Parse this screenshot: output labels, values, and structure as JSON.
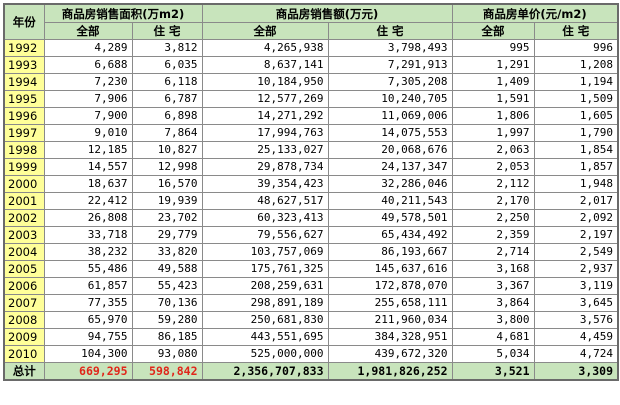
{
  "headers": {
    "year": "年份",
    "groups": [
      "商品房销售面积(万m2)",
      "商品房销售额(万元)",
      "商品房单价(元/m2)"
    ],
    "sub": [
      "全部",
      "住  宅",
      "全部",
      "住    宅",
      "全部",
      "住  宅"
    ]
  },
  "rows": [
    {
      "year": "1992",
      "v": [
        "4,289",
        "3,812",
        "4,265,938",
        "3,798,493",
        "995",
        "996"
      ]
    },
    {
      "year": "1993",
      "v": [
        "6,688",
        "6,035",
        "8,637,141",
        "7,291,913",
        "1,291",
        "1,208"
      ]
    },
    {
      "year": "1994",
      "v": [
        "7,230",
        "6,118",
        "10,184,950",
        "7,305,208",
        "1,409",
        "1,194"
      ]
    },
    {
      "year": "1995",
      "v": [
        "7,906",
        "6,787",
        "12,577,269",
        "10,240,705",
        "1,591",
        "1,509"
      ]
    },
    {
      "year": "1996",
      "v": [
        "7,900",
        "6,898",
        "14,271,292",
        "11,069,006",
        "1,806",
        "1,605"
      ]
    },
    {
      "year": "1997",
      "v": [
        "9,010",
        "7,864",
        "17,994,763",
        "14,075,553",
        "1,997",
        "1,790"
      ]
    },
    {
      "year": "1998",
      "v": [
        "12,185",
        "10,827",
        "25,133,027",
        "20,068,676",
        "2,063",
        "1,854"
      ]
    },
    {
      "year": "1999",
      "v": [
        "14,557",
        "12,998",
        "29,878,734",
        "24,137,347",
        "2,053",
        "1,857"
      ]
    },
    {
      "year": "2000",
      "v": [
        "18,637",
        "16,570",
        "39,354,423",
        "32,286,046",
        "2,112",
        "1,948"
      ]
    },
    {
      "year": "2001",
      "v": [
        "22,412",
        "19,939",
        "48,627,517",
        "40,211,543",
        "2,170",
        "2,017"
      ]
    },
    {
      "year": "2002",
      "v": [
        "26,808",
        "23,702",
        "60,323,413",
        "49,578,501",
        "2,250",
        "2,092"
      ]
    },
    {
      "year": "2003",
      "v": [
        "33,718",
        "29,779",
        "79,556,627",
        "65,434,492",
        "2,359",
        "2,197"
      ]
    },
    {
      "year": "2004",
      "v": [
        "38,232",
        "33,820",
        "103,757,069",
        "86,193,667",
        "2,714",
        "2,549"
      ]
    },
    {
      "year": "2005",
      "v": [
        "55,486",
        "49,588",
        "175,761,325",
        "145,637,616",
        "3,168",
        "2,937"
      ]
    },
    {
      "year": "2006",
      "v": [
        "61,857",
        "55,423",
        "208,259,631",
        "172,878,070",
        "3,367",
        "3,119"
      ]
    },
    {
      "year": "2007",
      "v": [
        "77,355",
        "70,136",
        "298,891,189",
        "255,658,111",
        "3,864",
        "3,645"
      ]
    },
    {
      "year": "2008",
      "v": [
        "65,970",
        "59,280",
        "250,681,830",
        "211,960,034",
        "3,800",
        "3,576"
      ]
    },
    {
      "year": "2009",
      "v": [
        "94,755",
        "86,185",
        "443,551,695",
        "384,328,951",
        "4,681",
        "4,459"
      ]
    },
    {
      "year": "2010",
      "v": [
        "104,300",
        "93,080",
        "525,000,000",
        "439,672,320",
        "5,034",
        "4,724"
      ]
    }
  ],
  "total": {
    "label": "总计",
    "v": [
      "669,295",
      "598,842",
      "2,356,707,833",
      "1,981,826,252",
      "3,521",
      "3,309"
    ]
  },
  "colors": {
    "header_bg": "#c8e4bc",
    "year_bg": "#ffff99",
    "total_red": "#e0261a"
  }
}
